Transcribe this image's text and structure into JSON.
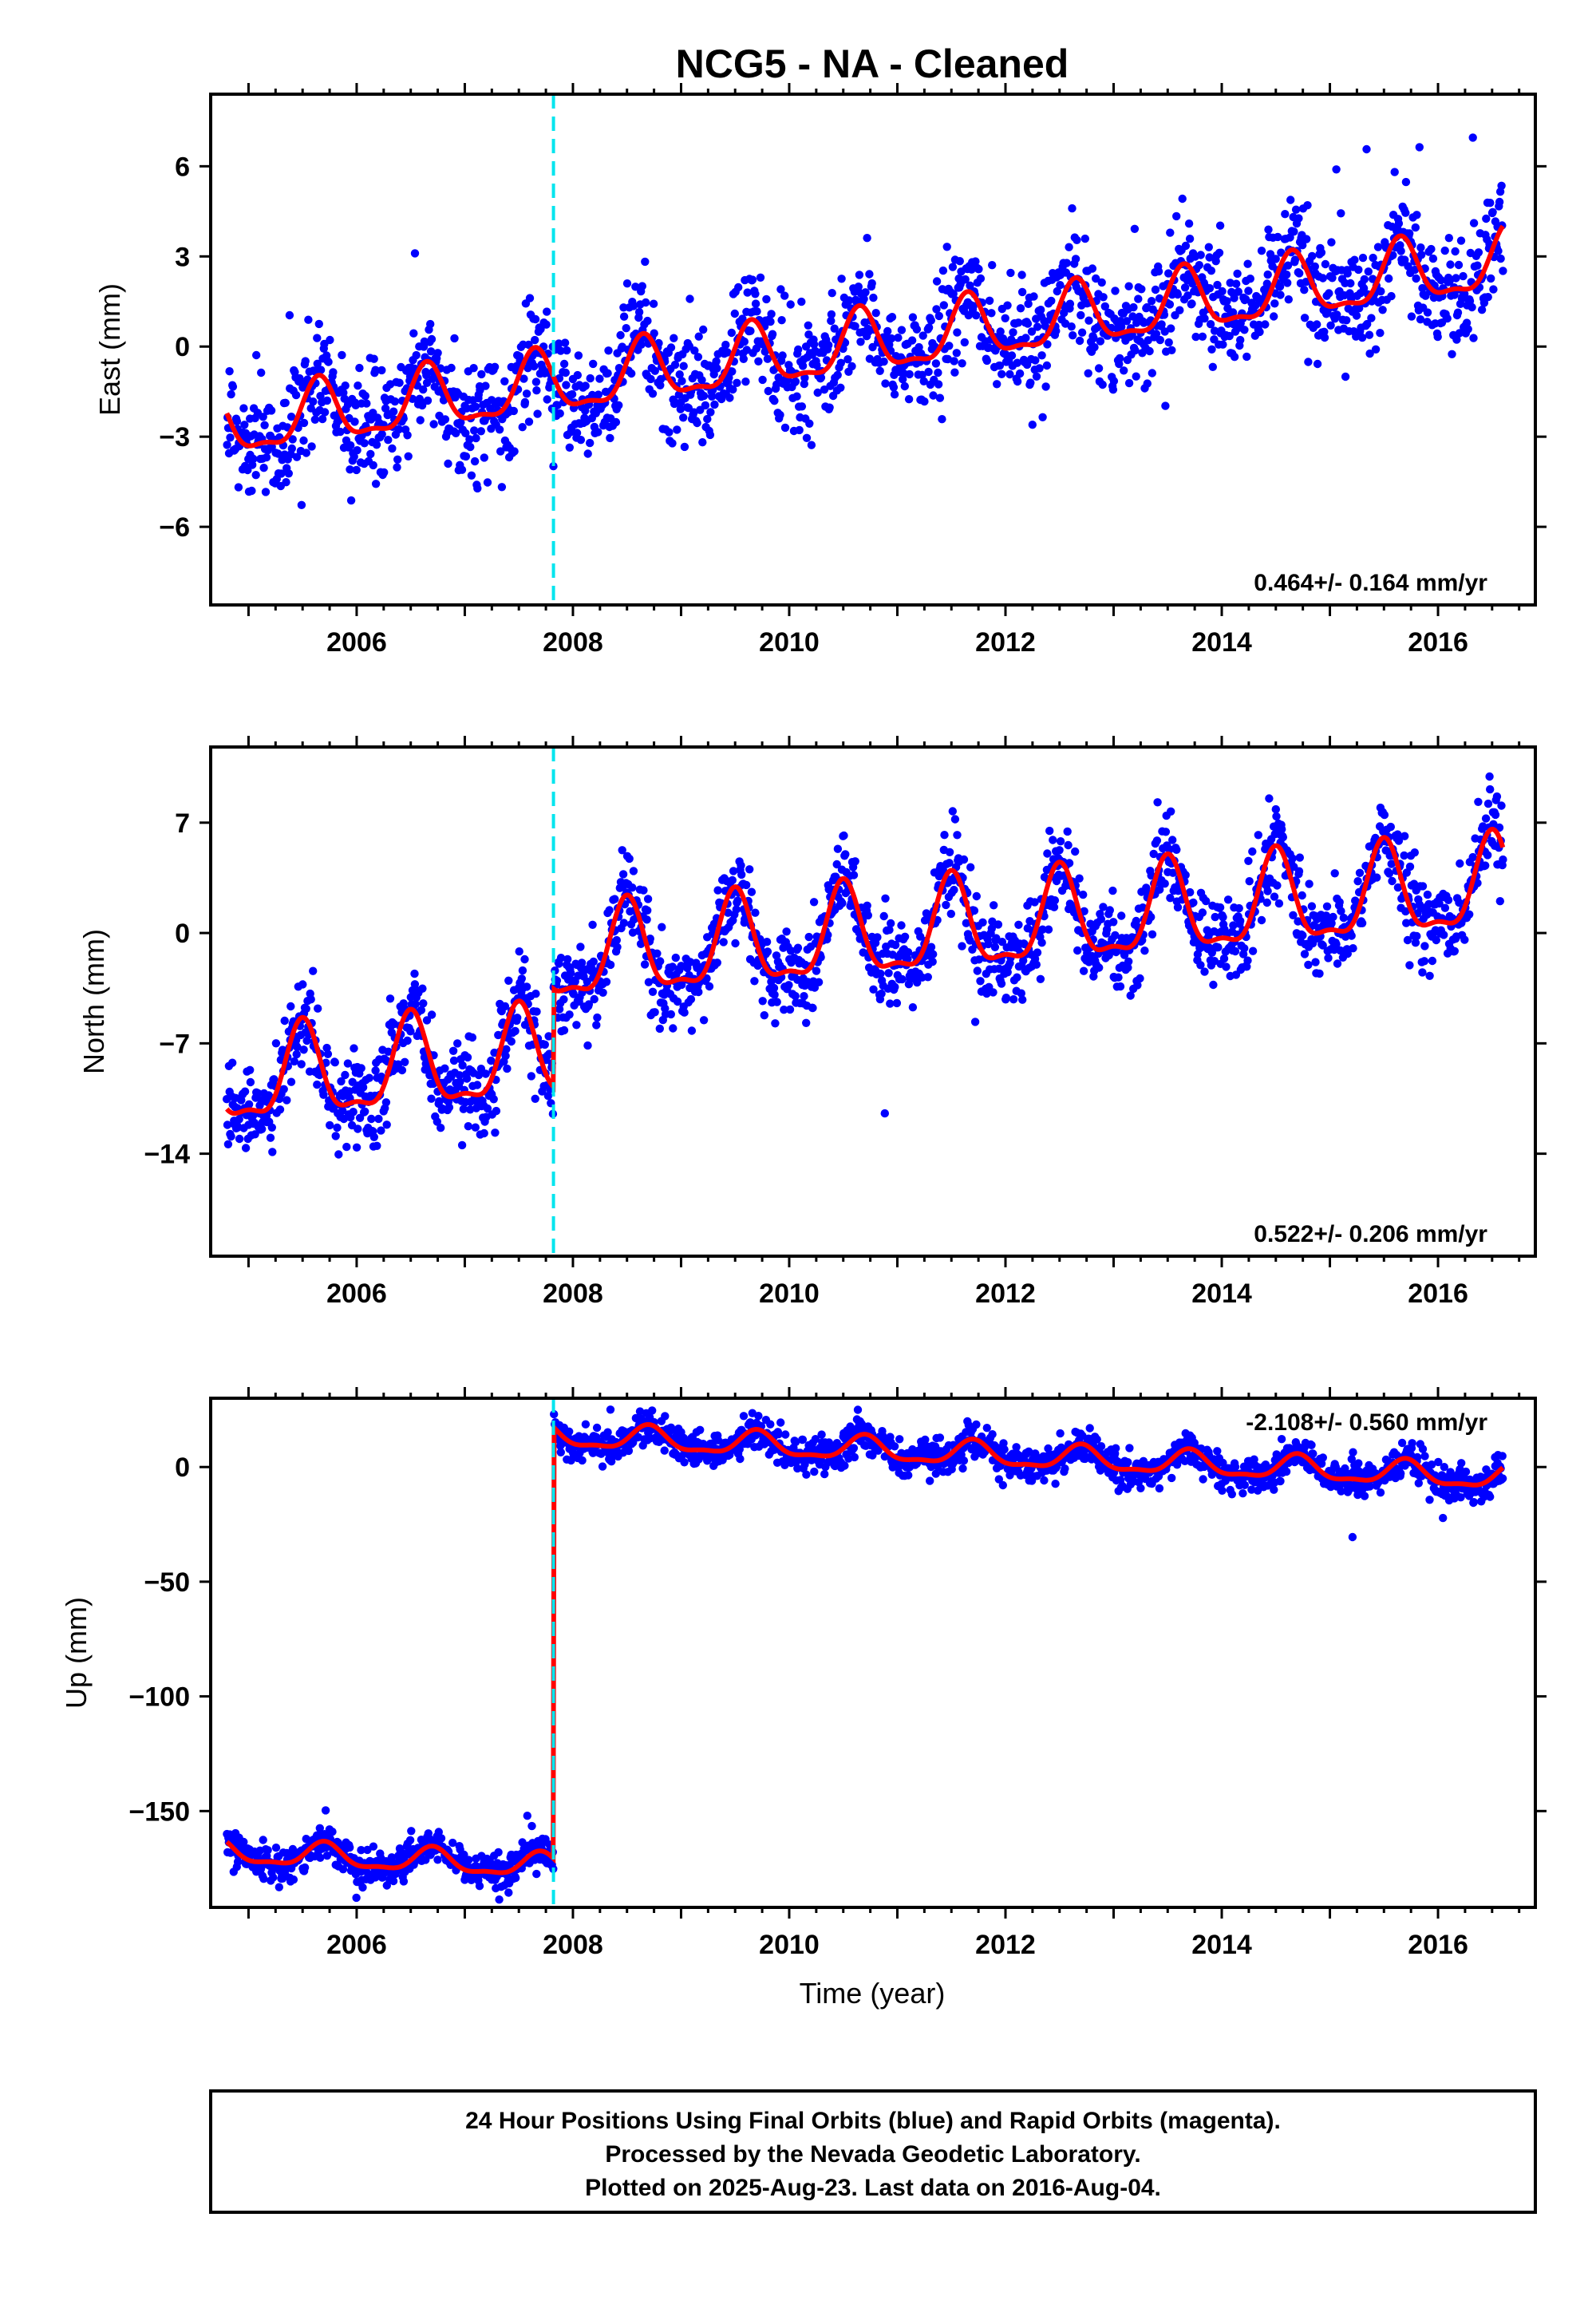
{
  "figure": {
    "title": "NCG5  - NA - Cleaned",
    "xlabel": "Time (year)",
    "footer": {
      "line1": "24 Hour Positions Using Final Orbits (blue) and Rapid Orbits (magenta).",
      "line2": "Processed by the Nevada Geodetic Laboratory.",
      "line3": "Plotted on 2025-Aug-23. Last data on 2016-Aug-04."
    }
  },
  "colors": {
    "final_orbits": "#0000ff",
    "model_fit": "#ff0000",
    "break_line": "#00e5ee",
    "frame": "#000000"
  },
  "chart_data": [
    {
      "type": "scatter",
      "name": "east",
      "ylabel": "East (mm)",
      "rate_label": "0.464+/- 0.164 mm/yr",
      "xlim": [
        2004.65,
        2016.9
      ],
      "ylim": [
        -8.6,
        8.4
      ],
      "xticks": [
        2006,
        2008,
        2010,
        2012,
        2014,
        2016
      ],
      "yticks": [
        -6,
        -3,
        0,
        3,
        6
      ],
      "x_start": 2004.8,
      "x_end": 2016.6,
      "x_break": 2007.82,
      "trend": {
        "intercept_2004_8": -2.7,
        "rate_mm_per_yr": 0.464,
        "offset_at_break": 0.0
      },
      "seasonal_amplitude": 1.0,
      "seasonal_peak_fraction": 0.65,
      "scatter_sigma": 0.95,
      "series": [
        {
          "name": "Final Orbits",
          "color": "#0000ff"
        },
        {
          "name": "Model",
          "color": "#ff0000"
        }
      ]
    },
    {
      "type": "scatter",
      "name": "north",
      "ylabel": "North (mm)",
      "rate_label": "0.522+/- 0.206 mm/yr",
      "xlim": [
        2004.65,
        2016.9
      ],
      "ylim": [
        -20.5,
        11.8
      ],
      "xticks": [
        2006,
        2008,
        2010,
        2012,
        2014,
        2016
      ],
      "yticks": [
        -14,
        -7,
        0,
        7
      ],
      "x_start": 2004.8,
      "x_end": 2016.6,
      "x_break": 2007.82,
      "trend": {
        "intercept_2004_8": -9.5,
        "rate_mm_per_yr": 0.522,
        "offset_at_break": 6.2
      },
      "seasonal_amplitude": 2.8,
      "seasonal_peak_fraction": 0.5,
      "scatter_sigma": 1.4,
      "series": [
        {
          "name": "Final Orbits",
          "color": "#0000ff"
        },
        {
          "name": "Model",
          "color": "#ff0000"
        }
      ]
    },
    {
      "type": "scatter",
      "name": "up",
      "ylabel": "Up (mm)",
      "rate_label": "-2.108+/- 0.560 mm/yr",
      "xlim": [
        2004.65,
        2016.9
      ],
      "ylim": [
        -192,
        30
      ],
      "xticks": [
        2006,
        2008,
        2010,
        2012,
        2014,
        2016
      ],
      "yticks": [
        -150,
        -100,
        -50,
        0
      ],
      "x_start": 2004.8,
      "x_end": 2016.6,
      "x_break": 2007.82,
      "trend": {
        "intercept_2004_8": -168,
        "rate_mm_per_yr": -2.108,
        "offset_at_break": 188
      },
      "seasonal_amplitude": 5.0,
      "seasonal_peak_fraction": 0.7,
      "scatter_sigma": 3.8,
      "series": [
        {
          "name": "Final Orbits",
          "color": "#0000ff"
        },
        {
          "name": "Model",
          "color": "#ff0000"
        }
      ]
    }
  ]
}
